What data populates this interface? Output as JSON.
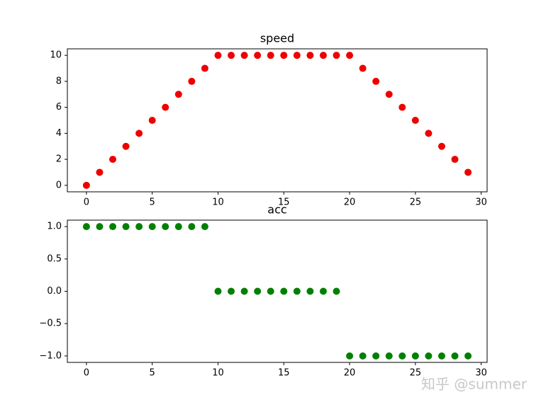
{
  "chart_data": [
    {
      "type": "scatter",
      "title": "speed",
      "x": [
        0,
        1,
        2,
        3,
        4,
        5,
        6,
        7,
        8,
        9,
        10,
        11,
        12,
        13,
        14,
        15,
        16,
        17,
        18,
        19,
        20,
        21,
        22,
        23,
        24,
        25,
        26,
        27,
        28,
        29
      ],
      "values": [
        0,
        1,
        2,
        3,
        4,
        5,
        6,
        7,
        8,
        9,
        10,
        10,
        10,
        10,
        10,
        10,
        10,
        10,
        10,
        10,
        10,
        9,
        8,
        7,
        6,
        5,
        4,
        3,
        2,
        1
      ],
      "color": "#ee0000",
      "xlim": [
        -1.45,
        30.45
      ],
      "xticks": [
        0,
        5,
        10,
        15,
        20,
        25,
        30
      ],
      "ylim": [
        -0.5,
        10.5
      ],
      "yticks": [
        0,
        2,
        4,
        6,
        8,
        10
      ]
    },
    {
      "type": "scatter",
      "title": "acc",
      "x": [
        0,
        1,
        2,
        3,
        4,
        5,
        6,
        7,
        8,
        9,
        10,
        11,
        12,
        13,
        14,
        15,
        16,
        17,
        18,
        19,
        20,
        21,
        22,
        23,
        24,
        25,
        26,
        27,
        28,
        29
      ],
      "values": [
        1,
        1,
        1,
        1,
        1,
        1,
        1,
        1,
        1,
        1,
        0,
        0,
        0,
        0,
        0,
        0,
        0,
        0,
        0,
        0,
        -1,
        -1,
        -1,
        -1,
        -1,
        -1,
        -1,
        -1,
        -1,
        -1
      ],
      "color": "#008000",
      "xlim": [
        -1.45,
        30.45
      ],
      "xticks": [
        0,
        5,
        10,
        15,
        20,
        25,
        30
      ],
      "ylim": [
        -1.1,
        1.1
      ],
      "yticks": [
        {
          "value": -1,
          "label": "−1.0"
        },
        {
          "value": -0.5,
          "label": "−0.5"
        },
        {
          "value": 0,
          "label": "0.0"
        },
        {
          "value": 0.5,
          "label": "0.5"
        },
        {
          "value": 1,
          "label": "1.0"
        }
      ]
    }
  ],
  "watermark": "知乎 @summer"
}
